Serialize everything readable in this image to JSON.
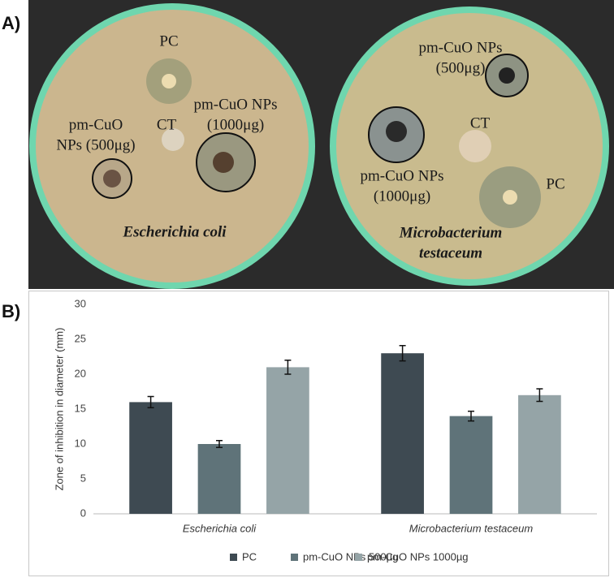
{
  "panels": {
    "a": "A)",
    "b": "B)"
  },
  "photo": {
    "left": {
      "pc": "PC",
      "ct": "CT",
      "low": [
        "pm-CuO",
        "NPs (500μg)"
      ],
      "high": [
        "pm-CuO NPs",
        "(1000μg)"
      ],
      "organism": [
        "Escherichia coli"
      ]
    },
    "right": {
      "pc": "PC",
      "ct": "CT",
      "low": [
        "pm-CuO NPs",
        "(500μg)"
      ],
      "high": [
        "pm-CuO NPs",
        "(1000μg)"
      ],
      "organism": [
        "Microbacterium",
        "testaceum"
      ]
    }
  },
  "chart_data": {
    "type": "bar",
    "ylabel": "Zone of inhibition in diameter (mm)",
    "categories": [
      "Escherichia coli",
      "Microbacterium testaceum"
    ],
    "series": [
      {
        "name": "PC",
        "color": "#3e4a52",
        "values": [
          16,
          23
        ],
        "errors": [
          0.8,
          1.1
        ]
      },
      {
        "name": "pm-CuO NPs 500µg",
        "color": "#5f7379",
        "values": [
          10,
          14
        ],
        "errors": [
          0.5,
          0.7
        ]
      },
      {
        "name": "pm-CuO NPs 1000µg",
        "color": "#95a4a7",
        "values": [
          21,
          17
        ],
        "errors": [
          1,
          0.9
        ]
      }
    ],
    "ylim": [
      0,
      30
    ],
    "yticks": [
      0,
      5,
      10,
      15,
      20,
      25,
      30
    ],
    "grid": false
  }
}
